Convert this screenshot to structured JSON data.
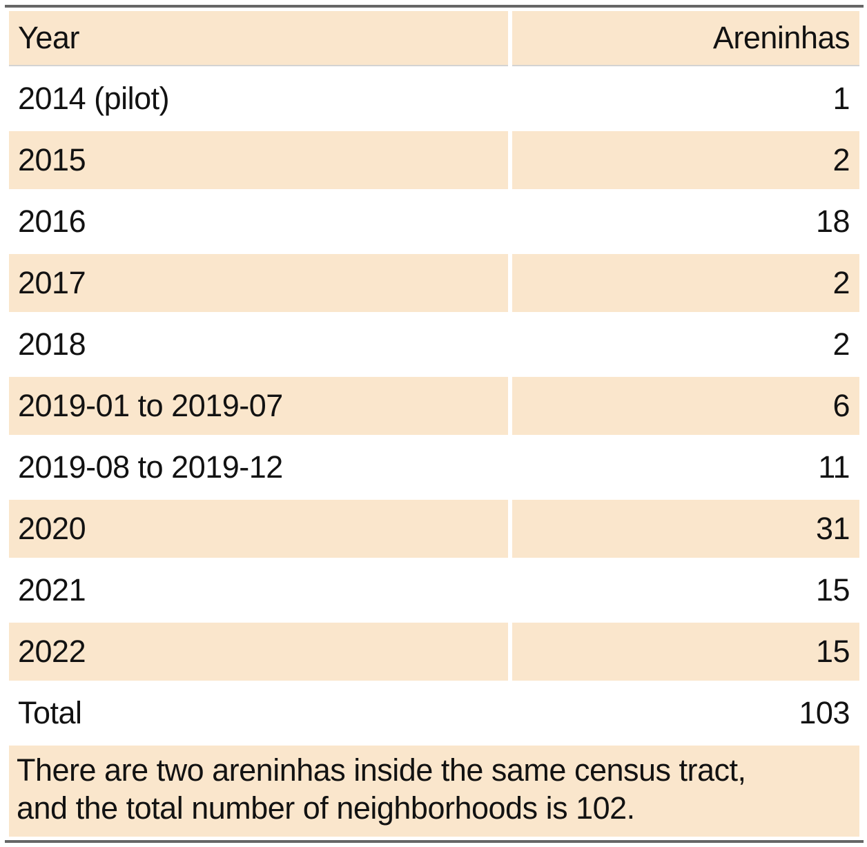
{
  "table": {
    "columns": [
      "Year",
      "Areninhas"
    ],
    "rows": [
      {
        "year": "2014 (pilot)",
        "areninhas": "1"
      },
      {
        "year": "2015",
        "areninhas": "2"
      },
      {
        "year": "2016",
        "areninhas": "18"
      },
      {
        "year": "2017",
        "areninhas": "2"
      },
      {
        "year": "2018",
        "areninhas": "2"
      },
      {
        "year": "2019-01 to 2019-07",
        "areninhas": "6"
      },
      {
        "year": "2019-08 to 2019-12",
        "areninhas": "11"
      },
      {
        "year": "2020",
        "areninhas": "31"
      },
      {
        "year": "2021",
        "areninhas": "15"
      },
      {
        "year": "2022",
        "areninhas": "15"
      }
    ],
    "total_row": {
      "year": "Total",
      "areninhas": "103"
    },
    "footnote_lines": [
      "There are two areninhas inside the same census tract,",
      "and the total number of neighborhoods is 102."
    ]
  },
  "colors": {
    "stripe": "#fae6cc",
    "rule_dark": "#666666",
    "rule_light": "#d3d3d3",
    "text": "#121212",
    "background": "#ffffff"
  },
  "chart_data": {
    "type": "table",
    "columns": [
      "Year",
      "Areninhas"
    ],
    "categories": [
      "2014 (pilot)",
      "2015",
      "2016",
      "2017",
      "2018",
      "2019-01 to 2019-07",
      "2019-08 to 2019-12",
      "2020",
      "2021",
      "2022"
    ],
    "values": [
      1,
      2,
      18,
      2,
      2,
      6,
      11,
      31,
      15,
      15
    ],
    "total_label": "Total",
    "total": 103,
    "footnote": "There are two areninhas inside the same census tract, and the total number of neighborhoods is 102.",
    "layout_hints": {
      "striped_rows": true,
      "stripe_color": "#fae6cc",
      "value_alignment": "right",
      "grid": "off"
    }
  }
}
